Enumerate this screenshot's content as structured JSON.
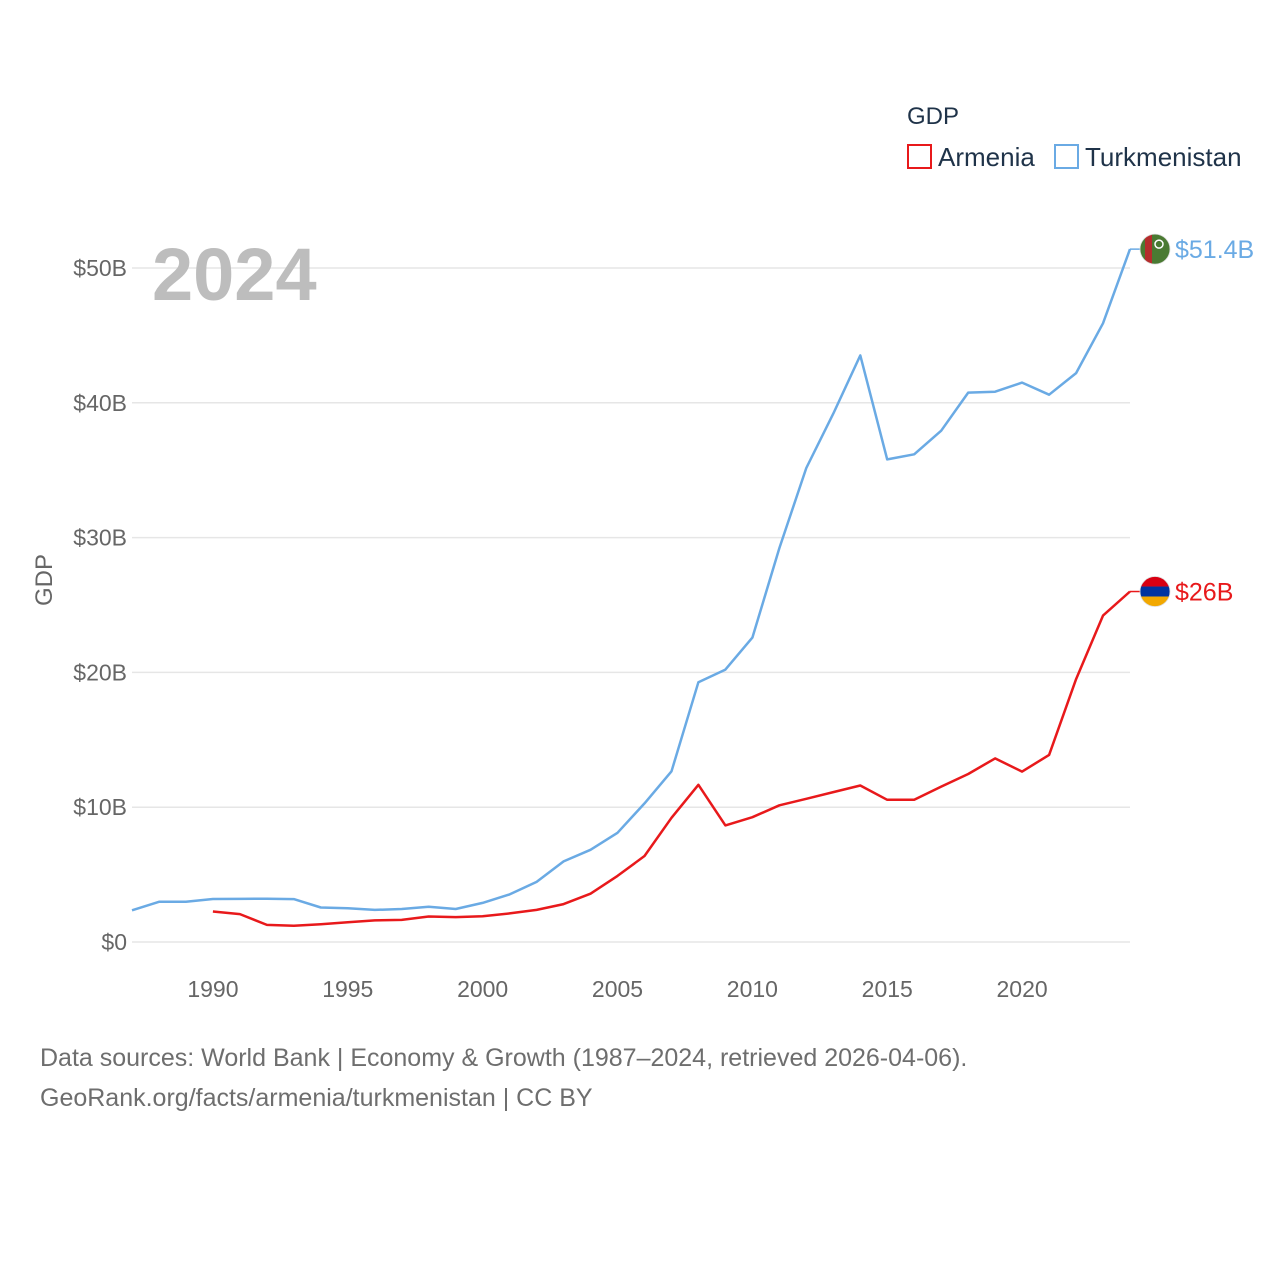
{
  "chart_data": {
    "type": "line",
    "title": "GDP",
    "year_label": "2024",
    "ylabel": "GDP",
    "xlabel": "",
    "xlim": [
      1987,
      2024
    ],
    "ylim": [
      0,
      50000000000
    ],
    "x_ticks": [
      1990,
      1995,
      2000,
      2005,
      2010,
      2015,
      2020
    ],
    "y_ticks": [
      {
        "value": 0,
        "label": "$0"
      },
      {
        "value": 10000000000,
        "label": "$10B"
      },
      {
        "value": 20000000000,
        "label": "$20B"
      },
      {
        "value": 30000000000,
        "label": "$30B"
      },
      {
        "value": 40000000000,
        "label": "$40B"
      },
      {
        "value": 50000000000,
        "label": "$50B"
      }
    ],
    "grid": true,
    "legend_placement": "top-right",
    "series": [
      {
        "name": "Armenia",
        "color": "#e8191b",
        "end_label": "$26B",
        "flag": "armenia-flag",
        "x": [
          1990,
          1991,
          1992,
          1993,
          1994,
          1995,
          1996,
          1997,
          1998,
          1999,
          2000,
          2001,
          2002,
          2003,
          2004,
          2005,
          2006,
          2007,
          2008,
          2009,
          2010,
          2011,
          2012,
          2013,
          2014,
          2015,
          2016,
          2017,
          2018,
          2019,
          2020,
          2021,
          2022,
          2023,
          2024
        ],
        "values": [
          2260000000.0,
          2070000000.0,
          1270000000.0,
          1200000000.0,
          1320000000.0,
          1470000000.0,
          1600000000.0,
          1640000000.0,
          1890000000.0,
          1850000000.0,
          1910000000.0,
          2120000000.0,
          2380000000.0,
          2810000000.0,
          3580000000.0,
          4900000000.0,
          6380000000.0,
          9210000000.0,
          11660000000.0,
          8650000000.0,
          9260000000.0,
          10140000000.0,
          10620000000.0,
          11120000000.0,
          11610000000.0,
          10550000000.0,
          10550000000.0,
          11530000000.0,
          12460000000.0,
          13620000000.0,
          12640000000.0,
          13880000000.0,
          19500000000.0,
          24210000000.0,
          26000000000.0
        ]
      },
      {
        "name": "Turkmenistan",
        "color": "#6aaae4",
        "end_label": "$51.4B",
        "flag": "turkmenistan-flag",
        "x": [
          1987,
          1988,
          1989,
          1990,
          1991,
          1992,
          1993,
          1994,
          1995,
          1996,
          1997,
          1998,
          1999,
          2000,
          2001,
          2002,
          2003,
          2004,
          2005,
          2006,
          2007,
          2008,
          2009,
          2010,
          2011,
          2012,
          2013,
          2014,
          2015,
          2016,
          2017,
          2018,
          2019,
          2020,
          2021,
          2022,
          2023,
          2024
        ],
        "values": [
          2350000000.0,
          2980000000.0,
          2980000000.0,
          3190000000.0,
          3200000000.0,
          3210000000.0,
          3180000000.0,
          2560000000.0,
          2500000000.0,
          2380000000.0,
          2450000000.0,
          2620000000.0,
          2450000000.0,
          2900000000.0,
          3530000000.0,
          4460000000.0,
          5980000000.0,
          6840000000.0,
          8100000000.0,
          10280000000.0,
          12660000000.0,
          19270000000.0,
          20210000000.0,
          22580000000.0,
          29230000000.0,
          35160000000.0,
          39200000000.0,
          43520000000.0,
          35800000000.0,
          36180000000.0,
          37930000000.0,
          40760000000.0,
          40820000000.0,
          41500000000.0,
          40600000000.0,
          42200000000.0,
          45900000000.0,
          51400000000.0
        ]
      }
    ]
  },
  "footer": {
    "line1": "Data sources: World Bank | Economy & Growth (1987–2024, retrieved 2026-04-06).",
    "line2": "GeoRank.org/facts/armenia/turkmenistan | CC BY"
  }
}
